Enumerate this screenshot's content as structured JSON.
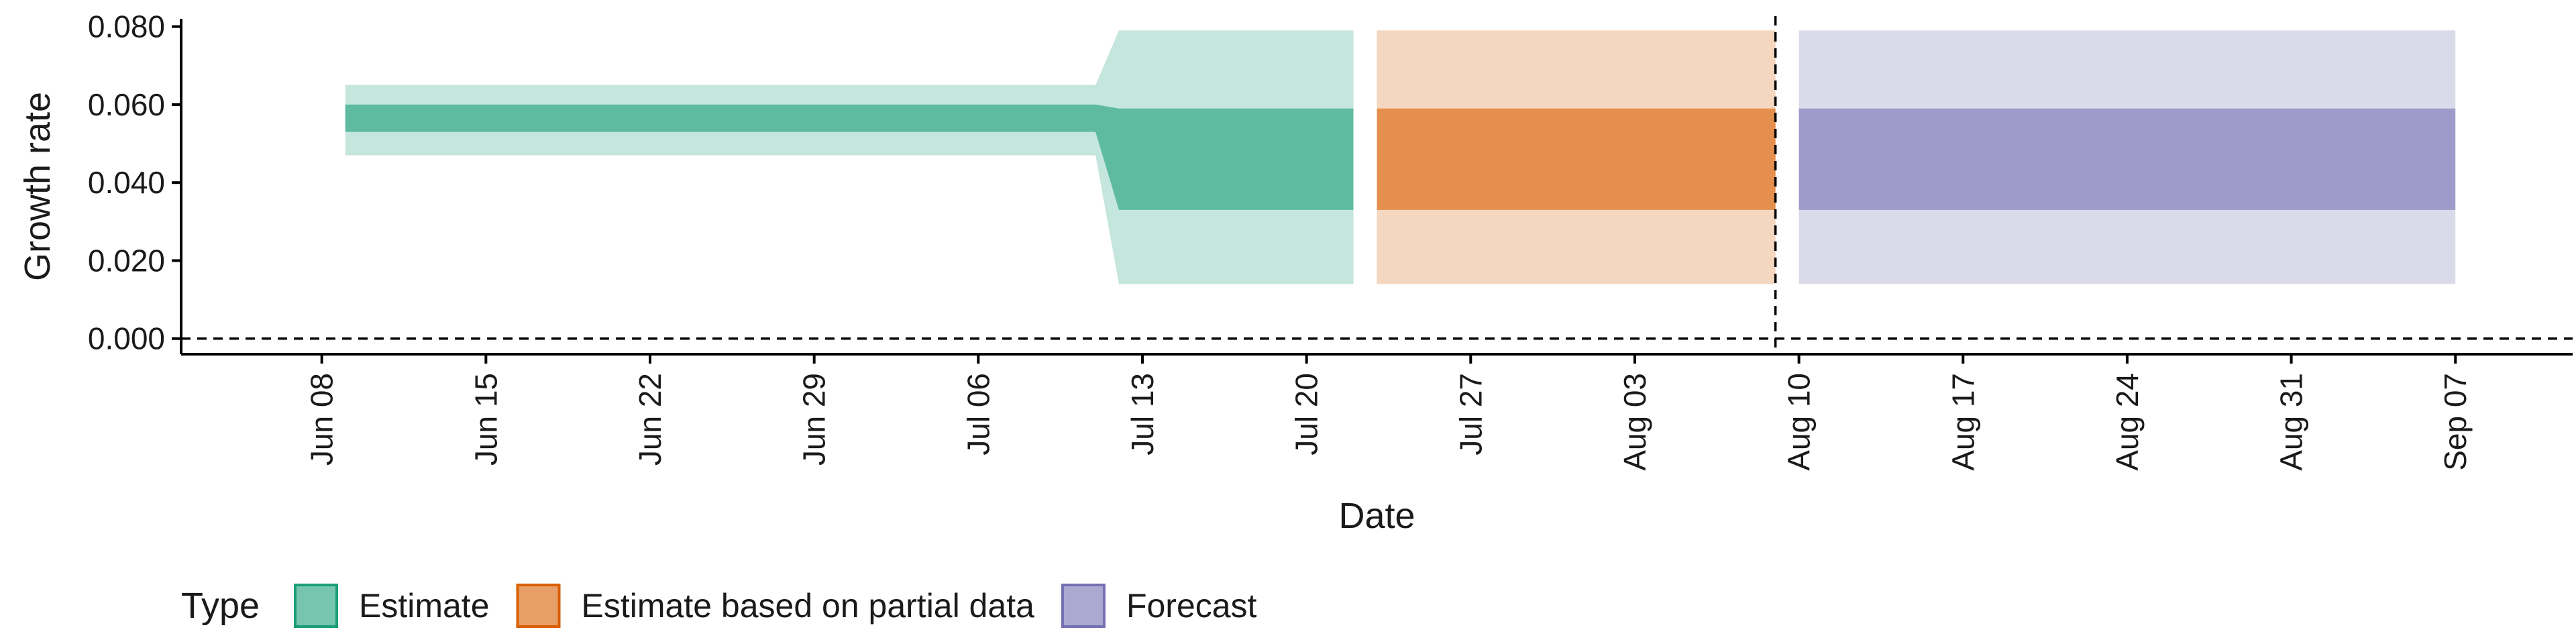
{
  "chart_data": {
    "type": "area",
    "title": "",
    "xlabel": "Date",
    "ylabel": "Growth rate",
    "x_range": [
      "2020-06-02",
      "2020-09-12"
    ],
    "ylim": [
      -0.004,
      0.082
    ],
    "yticks": [
      0.0,
      0.02,
      0.04,
      0.06,
      0.08
    ],
    "ytick_labels": [
      "0.000",
      "0.020",
      "0.040",
      "0.060",
      "0.080"
    ],
    "xticks": [
      {
        "date": "2020-06-08",
        "label": "Jun 08"
      },
      {
        "date": "2020-06-15",
        "label": "Jun 15"
      },
      {
        "date": "2020-06-22",
        "label": "Jun 22"
      },
      {
        "date": "2020-06-29",
        "label": "Jun 29"
      },
      {
        "date": "2020-07-06",
        "label": "Jul 06"
      },
      {
        "date": "2020-07-13",
        "label": "Jul 13"
      },
      {
        "date": "2020-07-20",
        "label": "Jul 20"
      },
      {
        "date": "2020-07-27",
        "label": "Jul 27"
      },
      {
        "date": "2020-08-03",
        "label": "Aug 03"
      },
      {
        "date": "2020-08-10",
        "label": "Aug 10"
      },
      {
        "date": "2020-08-17",
        "label": "Aug 17"
      },
      {
        "date": "2020-08-24",
        "label": "Aug 24"
      },
      {
        "date": "2020-08-31",
        "label": "Aug 31"
      },
      {
        "date": "2020-09-07",
        "label": "Sep 07"
      }
    ],
    "hlines": [
      0
    ],
    "vlines": [
      "2020-08-09"
    ],
    "grid": false,
    "legend": {
      "title": "Type",
      "position": "bottom"
    },
    "series": [
      {
        "name": "Estimate",
        "color": "#1b9e77",
        "points": [
          {
            "date": "2020-06-09",
            "lower_90": 0.047,
            "upper_90": 0.065,
            "lower_50": 0.053,
            "upper_50": 0.06
          },
          {
            "date": "2020-07-11",
            "lower_90": 0.047,
            "upper_90": 0.065,
            "lower_50": 0.053,
            "upper_50": 0.06
          },
          {
            "date": "2020-07-12",
            "lower_90": 0.014,
            "upper_90": 0.079,
            "lower_50": 0.033,
            "upper_50": 0.059
          },
          {
            "date": "2020-07-22",
            "lower_90": 0.014,
            "upper_90": 0.079,
            "lower_50": 0.033,
            "upper_50": 0.059
          }
        ]
      },
      {
        "name": "Estimate based on partial data",
        "color": "#d95f02",
        "points": [
          {
            "date": "2020-07-23",
            "lower_90": 0.014,
            "upper_90": 0.079,
            "lower_50": 0.033,
            "upper_50": 0.059
          },
          {
            "date": "2020-08-09",
            "lower_90": 0.014,
            "upper_90": 0.079,
            "lower_50": 0.033,
            "upper_50": 0.059
          }
        ]
      },
      {
        "name": "Forecast",
        "color": "#7570b3",
        "points": [
          {
            "date": "2020-08-10",
            "lower_90": 0.014,
            "upper_90": 0.079,
            "lower_50": 0.033,
            "upper_50": 0.059
          },
          {
            "date": "2020-09-07",
            "lower_90": 0.014,
            "upper_90": 0.079,
            "lower_50": 0.033,
            "upper_50": 0.059
          }
        ]
      }
    ]
  }
}
